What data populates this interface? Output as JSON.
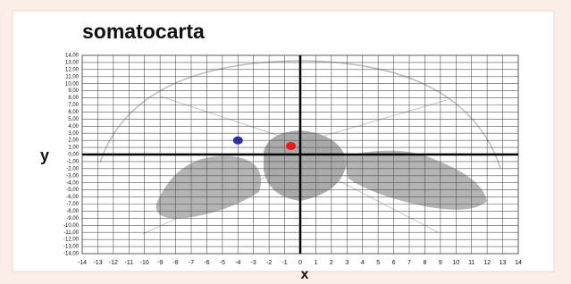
{
  "chart_data": {
    "type": "scatter",
    "title": "somatocarta",
    "x_label": "x",
    "y_label": "y",
    "xlim": [
      -14,
      14
    ],
    "ylim": [
      -14,
      14
    ],
    "xticks": [
      -14,
      -13,
      -12,
      -11,
      -10,
      -9,
      -8,
      -7,
      -6,
      -5,
      -4,
      -3,
      -2,
      -1,
      0,
      1,
      2,
      3,
      4,
      5,
      6,
      7,
      8,
      9,
      10,
      11,
      12,
      13,
      14
    ],
    "yticks": [
      {
        "value": -14,
        "label": "-14,00"
      },
      {
        "value": -13,
        "label": "-13,00"
      },
      {
        "value": -12,
        "label": "-12,00"
      },
      {
        "value": -11,
        "label": "-11,00"
      },
      {
        "value": -10,
        "label": "-10,00"
      },
      {
        "value": -9,
        "label": "-9,00"
      },
      {
        "value": -8,
        "label": "-8,00"
      },
      {
        "value": -7,
        "label": "-7,00"
      },
      {
        "value": -6,
        "label": "-6,00"
      },
      {
        "value": -5,
        "label": "-5,00"
      },
      {
        "value": -4,
        "label": "-4,00"
      },
      {
        "value": -3,
        "label": "-3,00"
      },
      {
        "value": -2,
        "label": "-2,00"
      },
      {
        "value": -1,
        "label": "-1,00"
      },
      {
        "value": 0,
        "label": "0,00"
      },
      {
        "value": 1,
        "label": "1,00"
      },
      {
        "value": 2,
        "label": "2,00"
      },
      {
        "value": 3,
        "label": "3,00"
      },
      {
        "value": 4,
        "label": "4,00"
      },
      {
        "value": 5,
        "label": "5,00"
      },
      {
        "value": 6,
        "label": "6,00"
      },
      {
        "value": 7,
        "label": "7,00"
      },
      {
        "value": 8,
        "label": "8,00"
      },
      {
        "value": 9,
        "label": "9,00"
      },
      {
        "value": 10,
        "label": "10,00"
      },
      {
        "value": 11,
        "label": "11,00"
      },
      {
        "value": 12,
        "label": "12,00"
      },
      {
        "value": 13,
        "label": "13,00"
      },
      {
        "value": 14,
        "label": "14,00"
      }
    ],
    "grid": true,
    "series": [
      {
        "color": "#2a2fb0",
        "x": [
          -4
        ],
        "values": [
          2
        ]
      },
      {
        "color": "#ee1a1a",
        "x": [
          -0.6
        ],
        "values": [
          1.2
        ]
      }
    ]
  }
}
